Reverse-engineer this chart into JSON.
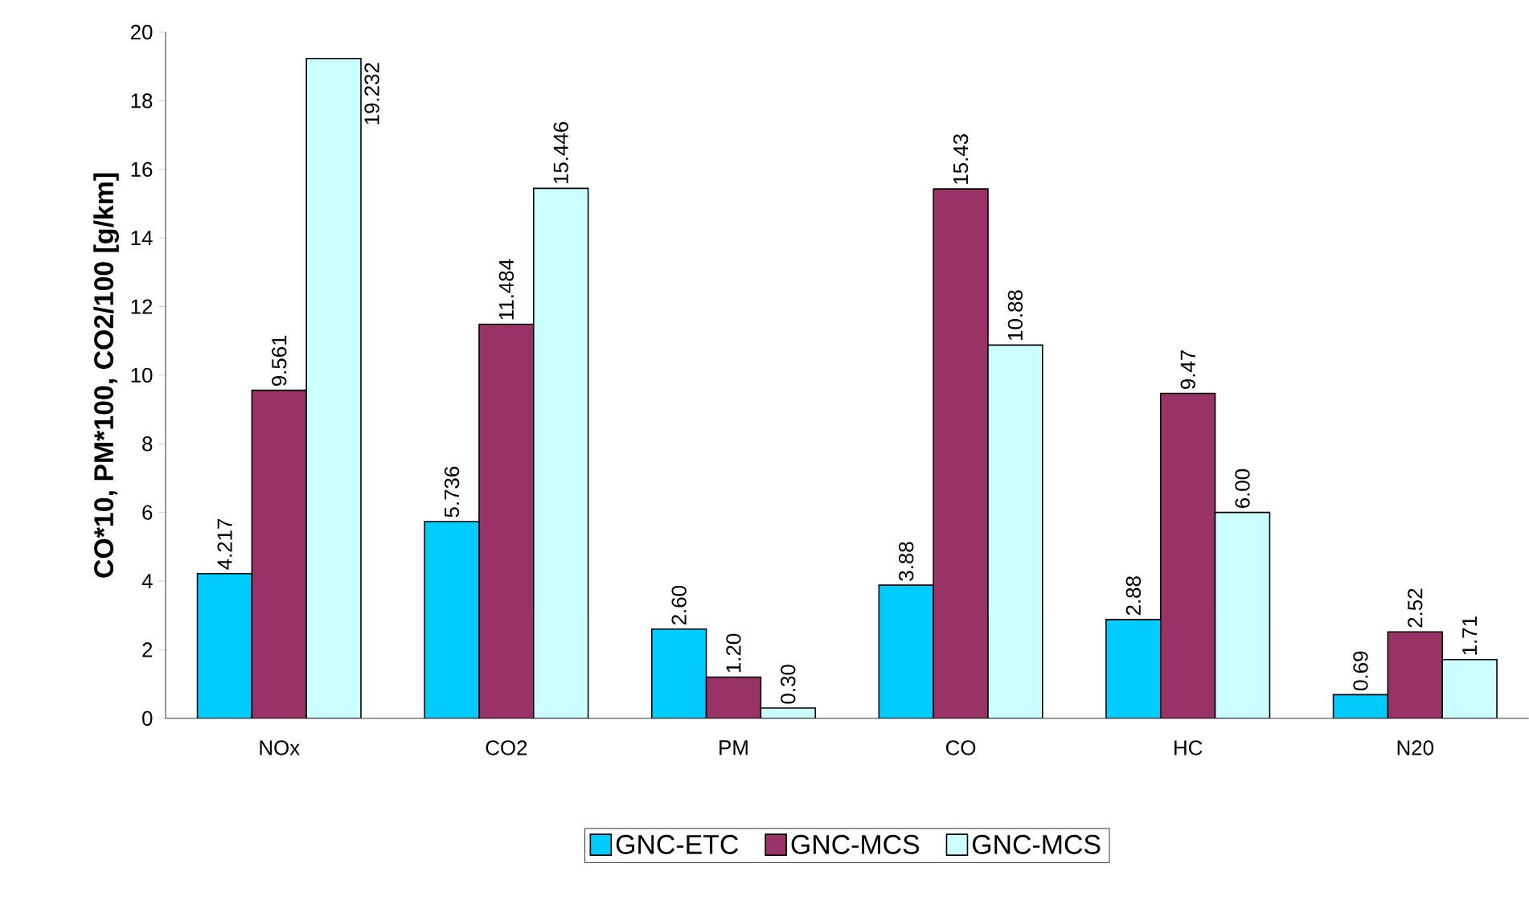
{
  "chart_data": {
    "type": "bar",
    "ylabel": "CO*10, PM*100, CO2/100 [g/km]",
    "categories": [
      "NOx",
      "CO2",
      "PM",
      "CO",
      "HC",
      "N20"
    ],
    "series": [
      {
        "name": "GNC-ETC",
        "color": "#00ccff",
        "values": [
          4.217,
          5.736,
          2.6,
          3.88,
          2.88,
          0.69
        ],
        "value_labels": [
          "4.217",
          "5.736",
          "2.60",
          "3.88",
          "2.88",
          "0.69"
        ]
      },
      {
        "name": "GNC-MCS",
        "color": "#993366",
        "values": [
          9.561,
          11.484,
          1.2,
          15.43,
          9.47,
          2.52
        ],
        "value_labels": [
          "9.561",
          "11.484",
          "1.20",
          "15.43",
          "9.47",
          "2.52"
        ]
      },
      {
        "name": "GNC-MCS",
        "color": "#ccffff",
        "values": [
          19.232,
          15.446,
          0.3,
          10.88,
          6.0,
          1.71
        ],
        "value_labels": [
          "19.232",
          "15.446",
          "0.30",
          "10.88",
          "6.00",
          "1.71"
        ]
      }
    ],
    "ylim": [
      0,
      20
    ],
    "yticks": [
      0,
      2,
      4,
      6,
      8,
      10,
      12,
      14,
      16,
      18,
      20
    ],
    "grid": false,
    "legend": "bottom"
  }
}
